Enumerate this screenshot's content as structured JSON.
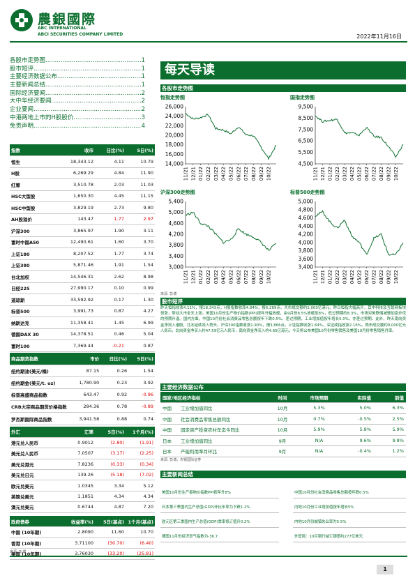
{
  "header": {
    "company_cn": "農銀國際",
    "company_en1": "ABC INTERNATIONAL",
    "company_en2": "ABCI SECURITIES COMPANY LIMITED",
    "date": "2022年11月16日",
    "brand_color": "#0b6e2e"
  },
  "toc": [
    {
      "title": "各股市走势图",
      "page": "1"
    },
    {
      "title": "股市短评",
      "page": "1"
    },
    {
      "title": "主要经济数据公布",
      "page": "1"
    },
    {
      "title": "主要新闻总结",
      "page": "1"
    },
    {
      "title": "国际经济要闻",
      "page": "2"
    },
    {
      "title": "大中华经济要闻",
      "page": "2"
    },
    {
      "title": "企业要闻",
      "page": "2"
    },
    {
      "title": "中港两地上市的H股股价",
      "page": "3"
    },
    {
      "title": "免责声明",
      "page": "4"
    }
  ],
  "index_table": {
    "headers": [
      "指数",
      "收市",
      "日比(%)",
      "5日(%)"
    ],
    "rows": [
      [
        "恒生",
        "18,343.12",
        "4.11",
        "10.79"
      ],
      [
        "H股",
        "6,269.29",
        "4.84",
        "11.90"
      ],
      [
        "红筹",
        "3,510.78",
        "2.03",
        "11.03"
      ],
      [
        "HSC大型股",
        "1,650.30",
        "4.45",
        "11.15"
      ],
      [
        "HSC中型股",
        "3,829.19",
        "2.73",
        "9.80"
      ],
      [
        "AH股溢价",
        "143.47",
        "1.77",
        "2.97"
      ],
      [
        "沪深300",
        "3,865.97",
        "1.90",
        "3.11"
      ],
      [
        "富时中国A50",
        "12,490.61",
        "1.60",
        "3.70"
      ],
      [
        "上证180",
        "8,207.52",
        "1.77",
        "3.74"
      ],
      [
        "上证380",
        "5,871.46",
        "1.91",
        "1.54"
      ],
      [
        "台北加权",
        "14,546.31",
        "2.62",
        "8.98"
      ],
      [
        "日经225",
        "27,990.17",
        "0.10",
        "0.99"
      ],
      [
        "道琼斯",
        "33,592.92",
        "0.17",
        "1.30"
      ],
      [
        "标普500",
        "3,991.73",
        "0.87",
        "4.27"
      ],
      [
        "纳斯达克",
        "11,358.41",
        "1.45",
        "6.99"
      ],
      [
        "德国DAX 30",
        "14,378.51",
        "0.46",
        "5.04"
      ],
      [
        "富时100",
        "7,369.44",
        "-0.21",
        "0.87"
      ],
      [
        "法国CAC 40",
        "6,641.66",
        "0.49",
        "3.11"
      ]
    ]
  },
  "commodity_table": {
    "headers": [
      "商品期货指数",
      "市价",
      "日比(%)",
      "5日(%)"
    ],
    "rows": [
      [
        "纽约期油(美元/桶)",
        "87.15",
        "0.26",
        "1.54"
      ],
      [
        "纽约期金(美元/t. oz)",
        "1,780.90",
        "0.23",
        "3.92"
      ],
      [
        "标普高盛商品指数",
        "643.47",
        "0.92",
        "-0.96"
      ],
      [
        "CRB大宗商品期货价格指数",
        "284.36",
        "0.78",
        "-0.89"
      ],
      [
        "罗杰斯国际商品指数",
        "3,941.58",
        "0.88",
        "0.74"
      ]
    ]
  },
  "fx_table": {
    "headers": [
      "外汇",
      "汇率",
      "5日(%)",
      "1个月(%)"
    ],
    "rows": [
      [
        "港元兑人民币",
        "0.9012",
        "(2.80)",
        "(1.91)"
      ],
      [
        "美元兑人民币",
        "7.0507",
        "(3.17)",
        "(2.25)"
      ],
      [
        "美元兑港元",
        "7.8236",
        "(0.33)",
        "(0.34)"
      ],
      [
        "美元兑日元",
        "139.26",
        "(5.18)",
        "(7.02)"
      ],
      [
        "欧元兑美元",
        "1.0345",
        "3.34",
        "5.12"
      ],
      [
        "英镑兑美元",
        "1.1851",
        "4.34",
        "4.34"
      ],
      [
        "澳元兑美元",
        "0.6744",
        "4.87",
        "7.20"
      ]
    ]
  },
  "bond_table": {
    "headers": [
      "政府债券",
      "收益率(%)",
      "5日(基点)",
      "1个月(基点)"
    ],
    "rows": [
      [
        "中国 (10年期)",
        "2.8090",
        "11.60",
        "10.70"
      ],
      [
        "香港 (10年期)",
        "3.71100",
        "(30.70)",
        "(6.40)"
      ],
      [
        "美国 (10年期)",
        "3.76030",
        "(33.20)",
        "(25.81)"
      ]
    ]
  },
  "source_left": "来源: 彭博",
  "title_band": "每天导读",
  "section_charts": "各股市走势图",
  "section_commentary": "股市短评",
  "section_econ": "主要经济数据公布",
  "section_news": "主要新闻总结",
  "chart_source": "来源: 彭博",
  "econ_source": "来源: 彭博，农银国际证券",
  "chart_data": [
    {
      "type": "line",
      "title": "恒指走势图",
      "x": [
        "11/21",
        "12/21",
        "01/22",
        "02/22",
        "03/22",
        "04/22",
        "05/22",
        "06/22",
        "07/22",
        "08/22",
        "09/22",
        "10/22",
        "11/22"
      ],
      "xticks": [
        "11/21",
        "12/21",
        "01/22",
        "02/22",
        "03/22",
        "04/22",
        "05/22",
        "06/22",
        "07/22",
        "08/22",
        "09/22",
        "10/22"
      ],
      "values": [
        24600,
        23400,
        23700,
        24300,
        21400,
        21100,
        20300,
        21800,
        20100,
        19900,
        17500,
        15100,
        17900
      ],
      "ylim": [
        14000,
        26000
      ],
      "yticks": [
        "14,000",
        "16,000",
        "18,000",
        "20,000",
        "22,000",
        "24,000",
        "26,000"
      ]
    },
    {
      "type": "line",
      "title": "国指走势图",
      "x": [
        "11/21",
        "12/21",
        "01/22",
        "02/22",
        "03/22",
        "04/22",
        "05/22",
        "06/22",
        "07/22",
        "08/22",
        "09/22",
        "10/22",
        "11/22"
      ],
      "xticks": [
        "11/21",
        "12/21",
        "01/22",
        "02/22",
        "03/22",
        "04/22",
        "05/22",
        "06/22",
        "07/22",
        "08/22",
        "09/22",
        "10/22"
      ],
      "values": [
        8700,
        8200,
        8300,
        8400,
        7200,
        7200,
        7000,
        7700,
        6900,
        6800,
        6000,
        5100,
        6200
      ],
      "ylim": [
        4500,
        9500
      ],
      "yticks": [
        "4,500",
        "5,500",
        "6,500",
        "7,500",
        "8,500",
        "9,500"
      ]
    },
    {
      "type": "line",
      "title": "沪深300走势图",
      "x": [
        "11/21",
        "12/21",
        "01/22",
        "02/22",
        "03/22",
        "04/22",
        "05/22",
        "06/22",
        "07/22",
        "08/22",
        "09/22",
        "10/22",
        "11/22"
      ],
      "xticks": [
        "11/21",
        "12/21",
        "01/22",
        "02/22",
        "03/22",
        "04/22",
        "05/22",
        "06/22",
        "07/22",
        "08/22",
        "09/22",
        "10/22"
      ],
      "values": [
        4900,
        5000,
        4600,
        4500,
        4200,
        3900,
        4000,
        4400,
        4200,
        4100,
        3900,
        3600,
        3860
      ],
      "ylim": [
        3000,
        5400
      ],
      "yticks": [
        "3,000",
        "3,400",
        "3,800",
        "4,200",
        "4,600",
        "5,000",
        "5,400"
      ],
      "ytick_values": [
        3000,
        3400,
        3800,
        4200,
        4600,
        5000,
        5400
      ]
    },
    {
      "type": "line",
      "title": "标普500走势图",
      "x": [
        "11/21",
        "12/21",
        "01/22",
        "02/22",
        "03/22",
        "04/22",
        "05/22",
        "06/22",
        "07/22",
        "08/22",
        "09/22",
        "10/22",
        "11/22"
      ],
      "xticks": [
        "11/21",
        "12/21",
        "01/22",
        "02/22",
        "03/22",
        "04/22",
        "05/22",
        "06/22",
        "07/22",
        "08/22",
        "09/22",
        "10/22"
      ],
      "values": [
        4650,
        4750,
        4500,
        4350,
        4550,
        4150,
        4000,
        3700,
        4100,
        4200,
        3700,
        3700,
        3990
      ],
      "ylim": [
        3400,
        5000
      ],
      "yticks": [
        "3,400",
        "3,600",
        "3,800",
        "4,000",
        "4,200",
        "4,400",
        "4,600",
        "4,800",
        "5,000"
      ]
    }
  ],
  "commentary": "昨天恒指收涨4.11%，报18,343点，H股指数收涨4.84%，报6,269点。大市成交额约2,000亿港元。昨日恒指大幅高开，其中科技及互联网板块领涨，带动大市全天上涨。美国10月份生产物价指数(PPI)按年升幅放缓，由9月份8.5%放缓至8%，低过预期的8.3%，市场对美联储减慢加息步伐的预期升温。国内方面，中国10月份社会消费品零售总额按年下跌0.5%，差过预期，工业增加值按年增长5.0%，亦差过预期。此外，昨天南向资金净流入港股，北水延续流入势头。沪深300指数收涨1.90%，报3,866点。上证指数收涨1.64%，深证成指收涨2.16%。两市成交额约9,000亿元人民币。北向资金净买入约47.59亿元人民币，南向资金净买入约4.65亿港元。今天将公布美国10月份零售销售及美国10月份零售销售月率。",
  "econ_table": {
    "headers": [
      "国家/地区经济指标",
      "时间",
      "市场预期",
      "实际值",
      "前值"
    ],
    "rows": [
      [
        "中国",
        "工业增加值同比",
        "10月",
        "5.3%",
        "5.0%",
        "6.3%"
      ],
      [
        "中国",
        "社会消费品零售总额同比",
        "10月",
        "0.7%",
        "-0.5%",
        "2.5%"
      ],
      [
        "中国",
        "固定资产投资农村年迄今同比",
        "10月",
        "5.9%",
        "5.8%",
        "5.9%"
      ],
      [
        "日本",
        "工业增加值同比",
        "9月",
        "N/A",
        "9.6%",
        "9.8%"
      ],
      [
        "日本",
        "产能利用率月环比",
        "9月",
        "N/A",
        "-0.4%",
        "1.2%"
      ]
    ]
  },
  "news": [
    "美国10月份生产者物价指数PPI按年升8%",
    "中国10月份社会消费品零售总额按年跌0.5%",
    "日本第三季国内生产总值(GDP)环比年率为下跌1.2%",
    "内地10月份工业增加值按年增长5%",
    "欧元区第三季国内生产总值(GDP)季率修订值升0.2%",
    "内地10月份城镇失业率为5.5%",
    "德国11月份经济景气指数为-36.7",
    "外管局：10月银行结汇顺差约277亿美元"
  ],
  "page_number": "1"
}
